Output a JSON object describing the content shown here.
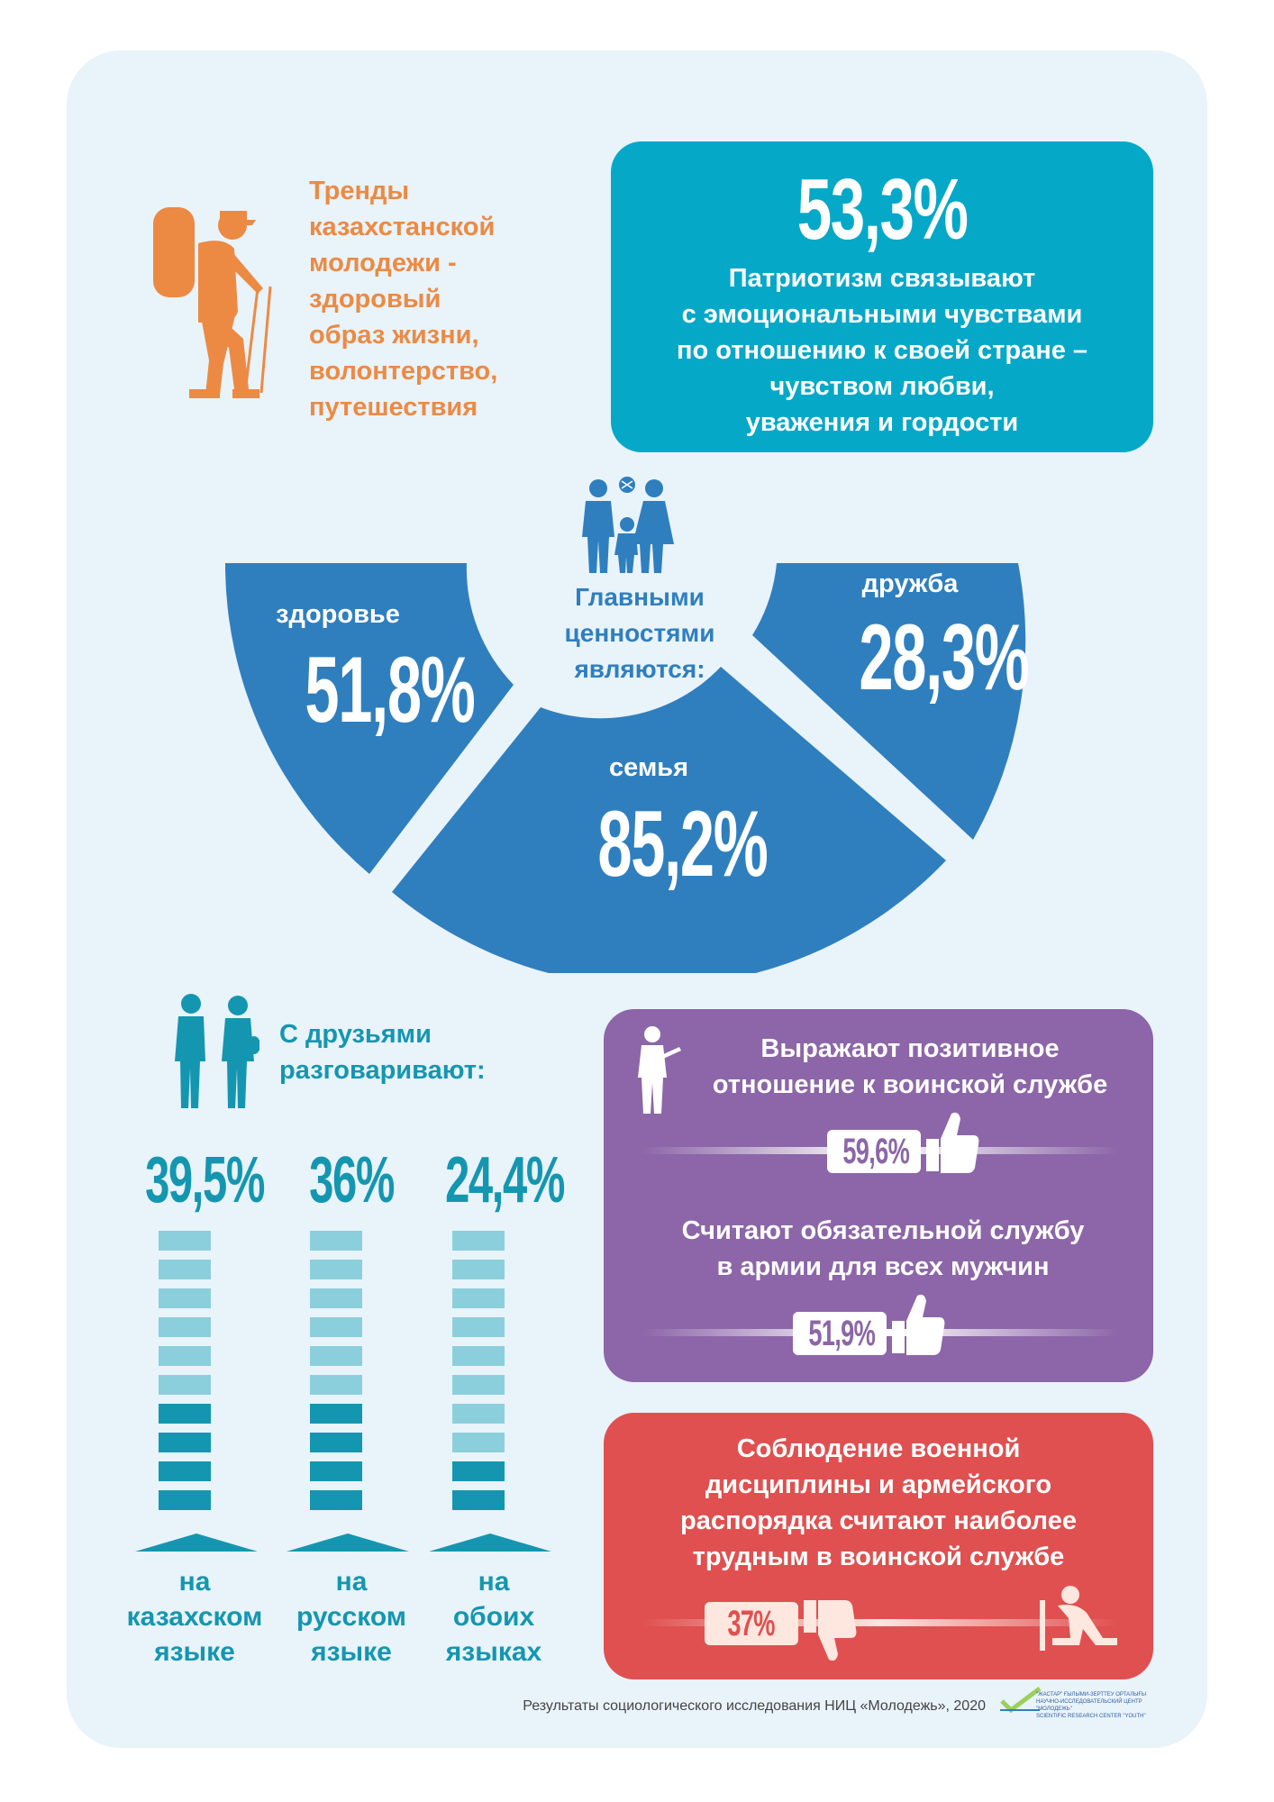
{
  "trend_text": [
    "Тренды",
    "казахстанской",
    "молодежи -",
    "здоровый",
    "образ жизни,",
    "волонтерство,",
    "путешествия"
  ],
  "patriotism": {
    "percent": "53,3%",
    "lines": [
      "Патриотизм связывают",
      "с эмоциональными чувствами",
      "по отношению к своей стране –",
      "чувством любви,",
      "уважения и гордости"
    ]
  },
  "values": {
    "center_lines": [
      "Главными",
      "ценностями",
      "являются:"
    ],
    "health": {
      "label": "здоровье",
      "percent": "51,8%"
    },
    "family": {
      "label": "семья",
      "percent": "85,2%"
    },
    "friendship": {
      "label": "дружба",
      "percent": "28,3%"
    }
  },
  "friends": {
    "title_lines": [
      "С друзьями",
      "разговаривают:"
    ],
    "languages": [
      {
        "percent": "39,5%",
        "label_lines": [
          "на",
          "казахском",
          "языке"
        ]
      },
      {
        "percent": "36%",
        "label_lines": [
          "на",
          "русском",
          "языке"
        ]
      },
      {
        "percent": "24,4%",
        "label_lines": [
          "на",
          "обоих",
          "языках"
        ]
      }
    ]
  },
  "military": {
    "positive": {
      "lines": [
        "Выражают позитивное",
        "отношение к воинской службе"
      ],
      "percent": "59,6%"
    },
    "mandatory": {
      "lines": [
        "Считают обязательной службу",
        "в армии для всех мужчин"
      ],
      "percent": "51,9%"
    },
    "discipline": {
      "lines": [
        "Соблюдение военной",
        "дисциплины и армейского",
        "распорядка считают наиболее",
        "трудным в воинской службе"
      ],
      "percent": "37%"
    }
  },
  "footer": "Результаты социологического исследования НИЦ «Молодежь», 2020",
  "logo_text": [
    "\"ЖАСТАР\" ҒЫЛЫМИ-ЗЕРТТЕУ ОРТАЛЫҒЫ",
    "НАУЧНО-ИССЛЕДОВАТЕЛЬСКИЙ ЦЕНТР \"МОЛОДЕЖЬ\"",
    "SCIENTIFIC RESEARCH CENTER \"YOUTH\""
  ],
  "colors": {
    "panel": "#e9f3fa",
    "orange": "#ec8a43",
    "teal": "#06a8c8",
    "blue": "#2f7fbf",
    "cyan": "#1596b0",
    "purple": "#8c66a8",
    "red": "#e05050"
  },
  "icons": [
    "hiker-icon",
    "family-icon",
    "friends-icon",
    "soldier-icon",
    "thumbs-up-icon",
    "thumbs-down-icon",
    "kneeling-soldier-icon"
  ]
}
